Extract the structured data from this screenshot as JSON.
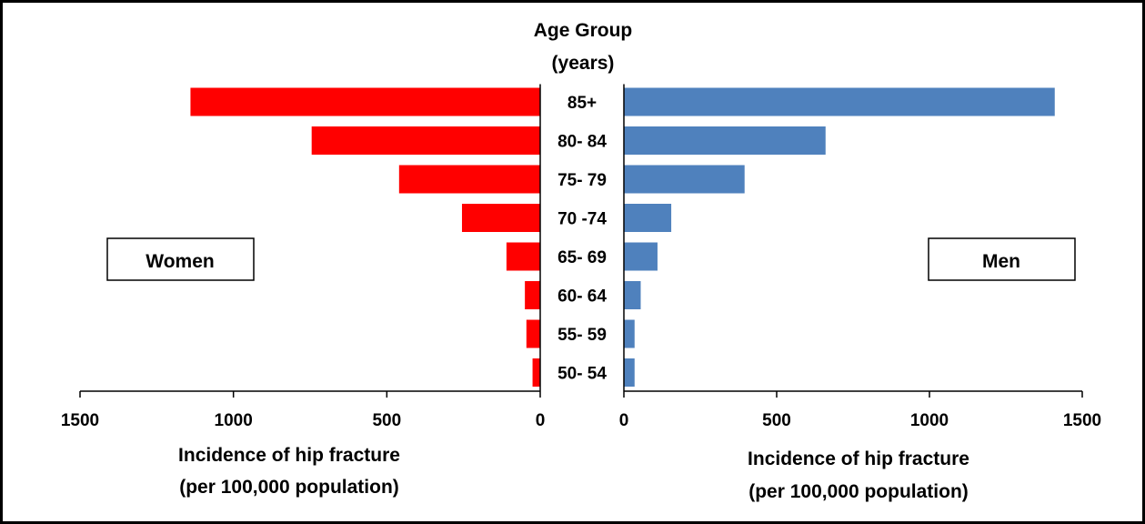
{
  "chart_data": {
    "type": "bar",
    "orientation": "horizontal-butterfly",
    "title_lines": [
      "Age Group",
      "(years)"
    ],
    "categories": [
      "85+",
      "80- 84",
      "75- 79",
      "70 -74",
      "65- 69",
      "60- 64",
      "55- 59",
      "50- 54"
    ],
    "series": [
      {
        "name": "Women",
        "side": "left",
        "color": "#ff0000",
        "values": [
          1140,
          745,
          460,
          255,
          110,
          50,
          45,
          25
        ]
      },
      {
        "name": "Men",
        "side": "right",
        "color": "#4f81bd",
        "values": [
          1410,
          660,
          395,
          155,
          110,
          55,
          35,
          35
        ]
      }
    ],
    "left_axis": {
      "range": [
        0,
        1500
      ],
      "ticks": [
        "1500",
        "1000",
        "500",
        "0"
      ],
      "tick_values": [
        1500,
        1000,
        500,
        0
      ],
      "label_lines": [
        "Incidence of hip fracture",
        "(per 100,000 population)"
      ]
    },
    "right_axis": {
      "range": [
        0,
        1500
      ],
      "ticks": [
        "0",
        "500",
        "1000",
        "1500"
      ],
      "tick_values": [
        0,
        500,
        1000,
        1500
      ],
      "label_lines": [
        "Incidence of hip fracture",
        "(per 100,000 population)"
      ]
    },
    "grid": false
  }
}
